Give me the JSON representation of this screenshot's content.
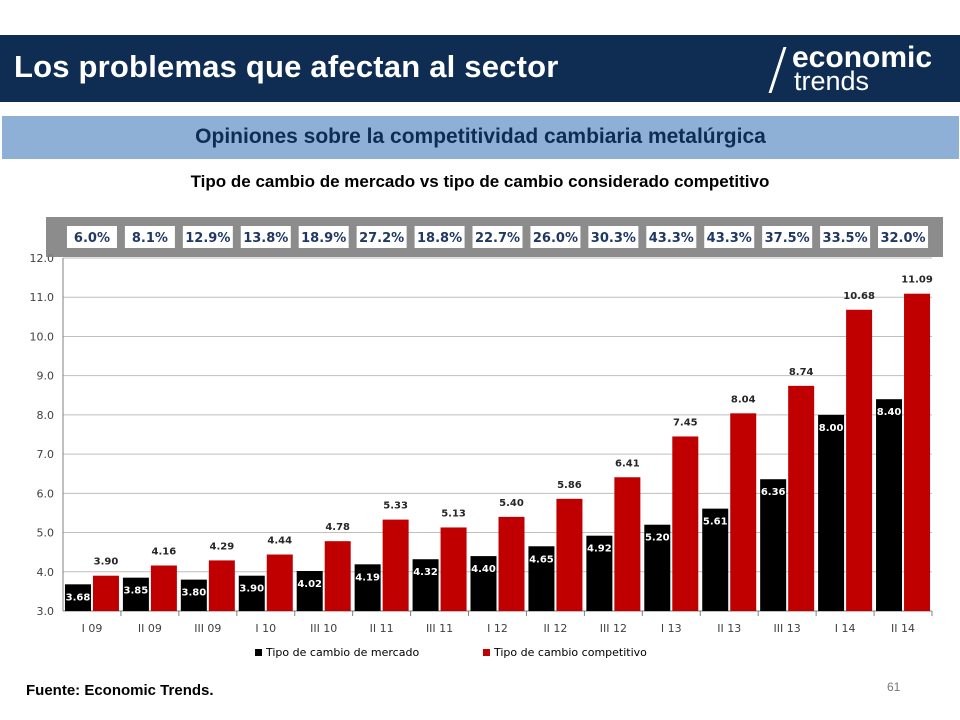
{
  "header": {
    "title": "Los problemas que afectan al sector"
  },
  "logo": {
    "word1": "economic",
    "word2": "trends"
  },
  "subtitle": "Opiniones sobre la competitividad cambiaria metalúrgica",
  "footer": {
    "source": "Fuente: Economic Trends.",
    "page": "61"
  },
  "colors": {
    "header": "#0f2d52",
    "subbar": "#8eb0d6",
    "market": "#000000",
    "competitive": "#c00000",
    "pct_band": "#7f7f7f"
  },
  "chart_data": {
    "type": "bar",
    "title": "Tipo de cambio de mercado vs tipo de cambio considerado competitivo",
    "categories": [
      "I 09",
      "II 09",
      "III 09",
      "I 10",
      "III 10",
      "II 11",
      "III 11",
      "I 12",
      "II 12",
      "III 12",
      "I 13",
      "II 13",
      "III 13",
      "I 14",
      "II 14"
    ],
    "series": [
      {
        "name": "Tipo de cambio de mercado",
        "color": "#000000",
        "values": [
          3.68,
          3.85,
          3.8,
          3.9,
          4.02,
          4.19,
          4.32,
          4.4,
          4.65,
          4.92,
          5.2,
          5.61,
          6.36,
          8.0,
          8.4
        ],
        "labels": [
          "3.68",
          "3.85",
          "3.80",
          "3.90",
          "4.02",
          "4.19",
          "4.32",
          "4.40",
          "4.65",
          "4.92",
          "5.20",
          "5.61",
          "6.36",
          "8.00",
          "8.40"
        ]
      },
      {
        "name": "Tipo de cambio competitivo",
        "color": "#c00000",
        "values": [
          3.9,
          4.16,
          4.29,
          4.44,
          4.78,
          5.33,
          5.13,
          5.4,
          5.86,
          6.41,
          7.45,
          8.04,
          8.74,
          10.68,
          11.09
        ],
        "labels": [
          "3.90",
          "4.16",
          "4.29",
          "4.44",
          "4.78",
          "5.33",
          "5.13",
          "5.40",
          "5.86",
          "6.41",
          "7.45",
          "8.04",
          "8.74",
          "10.68",
          "11.09"
        ]
      }
    ],
    "percent_gap": [
      "6.0%",
      "8.1%",
      "12.9%",
      "13.8%",
      "18.9%",
      "27.2%",
      "18.8%",
      "22.7%",
      "26.0%",
      "30.3%",
      "43.3%",
      "43.3%",
      "37.5%",
      "33.5%",
      "32.0%"
    ],
    "ylim": [
      3.0,
      12.0
    ],
    "yticks": [
      "3.0",
      "4.0",
      "5.0",
      "6.0",
      "7.0",
      "8.0",
      "9.0",
      "10.0",
      "11.0",
      "12.0"
    ],
    "grid": true,
    "legend": "bottom"
  }
}
